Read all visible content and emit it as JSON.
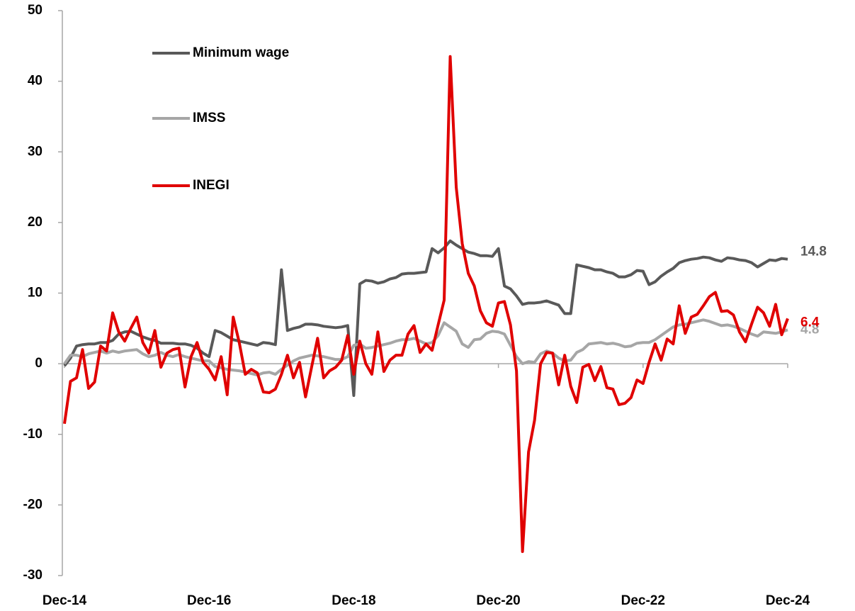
{
  "chart_data": {
    "type": "line",
    "categories": [
      "Dec-14",
      null,
      null,
      null,
      null,
      null,
      null,
      null,
      null,
      null,
      null,
      null,
      null,
      null,
      null,
      null,
      null,
      null,
      null,
      null,
      null,
      null,
      null,
      null,
      "Dec-16",
      null,
      null,
      null,
      null,
      null,
      null,
      null,
      null,
      null,
      null,
      null,
      null,
      null,
      null,
      null,
      null,
      null,
      null,
      null,
      null,
      null,
      null,
      null,
      "Dec-18",
      null,
      null,
      null,
      null,
      null,
      null,
      null,
      null,
      null,
      null,
      null,
      null,
      null,
      null,
      null,
      null,
      null,
      null,
      null,
      null,
      null,
      null,
      null,
      "Dec-20",
      null,
      null,
      null,
      null,
      null,
      null,
      null,
      null,
      null,
      null,
      null,
      null,
      null,
      null,
      null,
      null,
      null,
      null,
      null,
      null,
      null,
      null,
      null,
      "Dec-22",
      null,
      null,
      null,
      null,
      null,
      null,
      null,
      null,
      null,
      null,
      null,
      null,
      null,
      null,
      null,
      null,
      null,
      null,
      null,
      null,
      null,
      null,
      null,
      "Dec-24"
    ],
    "series": [
      {
        "name": "Minimum wage",
        "color": "#595959",
        "values": [
          -0.3,
          0.8,
          2.5,
          2.7,
          2.8,
          2.8,
          3.0,
          3.0,
          3.3,
          4.2,
          4.5,
          4.6,
          4.2,
          3.8,
          3.5,
          3.3,
          2.9,
          2.9,
          2.9,
          2.8,
          2.8,
          2.6,
          2.2,
          1.5,
          1.0,
          4.7,
          4.4,
          3.9,
          3.4,
          3.2,
          3.0,
          2.8,
          2.6,
          3.0,
          2.9,
          2.7,
          13.3,
          4.7,
          5.0,
          5.2,
          5.6,
          5.6,
          5.5,
          5.3,
          5.2,
          5.1,
          5.2,
          5.4,
          -4.5,
          11.3,
          11.8,
          11.7,
          11.4,
          11.6,
          12.0,
          12.2,
          12.7,
          12.8,
          12.8,
          12.9,
          13.0,
          16.3,
          15.7,
          16.4,
          17.4,
          16.8,
          16.3,
          15.8,
          15.6,
          15.3,
          15.3,
          15.2,
          16.3,
          11.0,
          10.6,
          9.6,
          8.4,
          8.6,
          8.6,
          8.7,
          8.9,
          8.6,
          8.3,
          7.1,
          7.1,
          14.0,
          13.8,
          13.6,
          13.3,
          13.3,
          13.0,
          12.8,
          12.3,
          12.3,
          12.6,
          13.2,
          13.1,
          11.2,
          11.6,
          12.4,
          13.0,
          13.5,
          14.3,
          14.6,
          14.8,
          14.9,
          15.1,
          15.0,
          14.7,
          14.5,
          15.0,
          14.9,
          14.7,
          14.6,
          14.3,
          13.7,
          14.2,
          14.7,
          14.6,
          14.9,
          14.8
        ]
      },
      {
        "name": "IMSS",
        "color": "#a6a6a6",
        "values": [
          0,
          1.2,
          1.2,
          1.0,
          1.4,
          1.6,
          1.8,
          1.5,
          1.8,
          1.6,
          1.8,
          1.9,
          2.0,
          1.4,
          1.0,
          1.2,
          1.6,
          1.2,
          1.0,
          1.3,
          1.0,
          0.8,
          0.6,
          0.4,
          0.4,
          -0.4,
          -0.6,
          -0.8,
          -0.9,
          -1.0,
          -1.2,
          -1.4,
          -1.6,
          -1.3,
          -1.2,
          -1.5,
          -0.8,
          -0.2,
          0.4,
          0.8,
          1.0,
          1.2,
          1.1,
          1.0,
          0.8,
          0.6,
          0.6,
          1.0,
          2.6,
          2.8,
          2.2,
          2.3,
          2.5,
          2.7,
          2.9,
          3.2,
          3.4,
          3.4,
          3.6,
          3.2,
          2.8,
          3.0,
          4.0,
          5.8,
          5.2,
          4.6,
          2.8,
          2.3,
          3.4,
          3.5,
          4.3,
          4.6,
          4.5,
          4.2,
          2.6,
          1.0,
          0.0,
          0.3,
          0.2,
          1.4,
          1.8,
          1.5,
          0.8,
          0.4,
          0.5,
          1.6,
          2.0,
          2.8,
          2.9,
          3.0,
          2.8,
          2.9,
          2.7,
          2.4,
          2.5,
          2.9,
          3.0,
          3.0,
          3.4,
          4.0,
          4.6,
          5.2,
          5.5,
          5.6,
          5.8,
          6.0,
          6.2,
          6.0,
          5.7,
          5.4,
          5.5,
          5.3,
          5.0,
          4.6,
          4.2,
          3.9,
          4.5,
          4.4,
          4.3,
          4.5,
          4.8
        ]
      },
      {
        "name": "INEGI",
        "color": "#e00000",
        "values": [
          -8.5,
          -2.5,
          -2.0,
          2.0,
          -3.5,
          -2.6,
          2.5,
          1.8,
          7.2,
          4.5,
          3.2,
          5.0,
          6.6,
          3.0,
          1.5,
          4.7,
          -0.5,
          1.5,
          2.0,
          2.2,
          -3.3,
          1.0,
          3.0,
          0.2,
          -0.8,
          -2.3,
          1.0,
          -4.4,
          6.6,
          3.0,
          -1.5,
          -0.8,
          -1.3,
          -4.0,
          -4.1,
          -3.6,
          -1.5,
          1.2,
          -2.0,
          0.2,
          -4.7,
          -0.5,
          3.6,
          -2.0,
          -1.0,
          -0.5,
          0.5,
          4.0,
          -1.5,
          3.2,
          0.0,
          -1.5,
          4.5,
          -1.1,
          0.5,
          1.2,
          1.2,
          4.2,
          5.4,
          1.6,
          2.8,
          1.9,
          5.5,
          9.0,
          43.5,
          25.0,
          17.0,
          12.8,
          11.0,
          7.5,
          5.8,
          5.3,
          8.6,
          8.8,
          5.5,
          -1.0,
          -26.6,
          -12.5,
          -8.0,
          0.0,
          1.6,
          1.5,
          -3.0,
          1.2,
          -3.2,
          -5.5,
          -0.5,
          -0.1,
          -2.4,
          -0.4,
          -3.4,
          -3.6,
          -5.8,
          -5.6,
          -4.8,
          -2.3,
          -2.8,
          0.2,
          2.8,
          0.5,
          3.5,
          2.8,
          8.2,
          4.3,
          6.6,
          7.0,
          8.2,
          9.5,
          10.1,
          7.4,
          7.5,
          6.9,
          4.5,
          3.1,
          5.6,
          8.0,
          7.2,
          5.3,
          8.4,
          4.1,
          6.4
        ]
      }
    ],
    "ylim": [
      -30,
      50
    ],
    "yticks": [
      -30,
      -20,
      -10,
      0,
      10,
      20,
      30,
      40,
      50
    ],
    "legend": "upper left"
  }
}
